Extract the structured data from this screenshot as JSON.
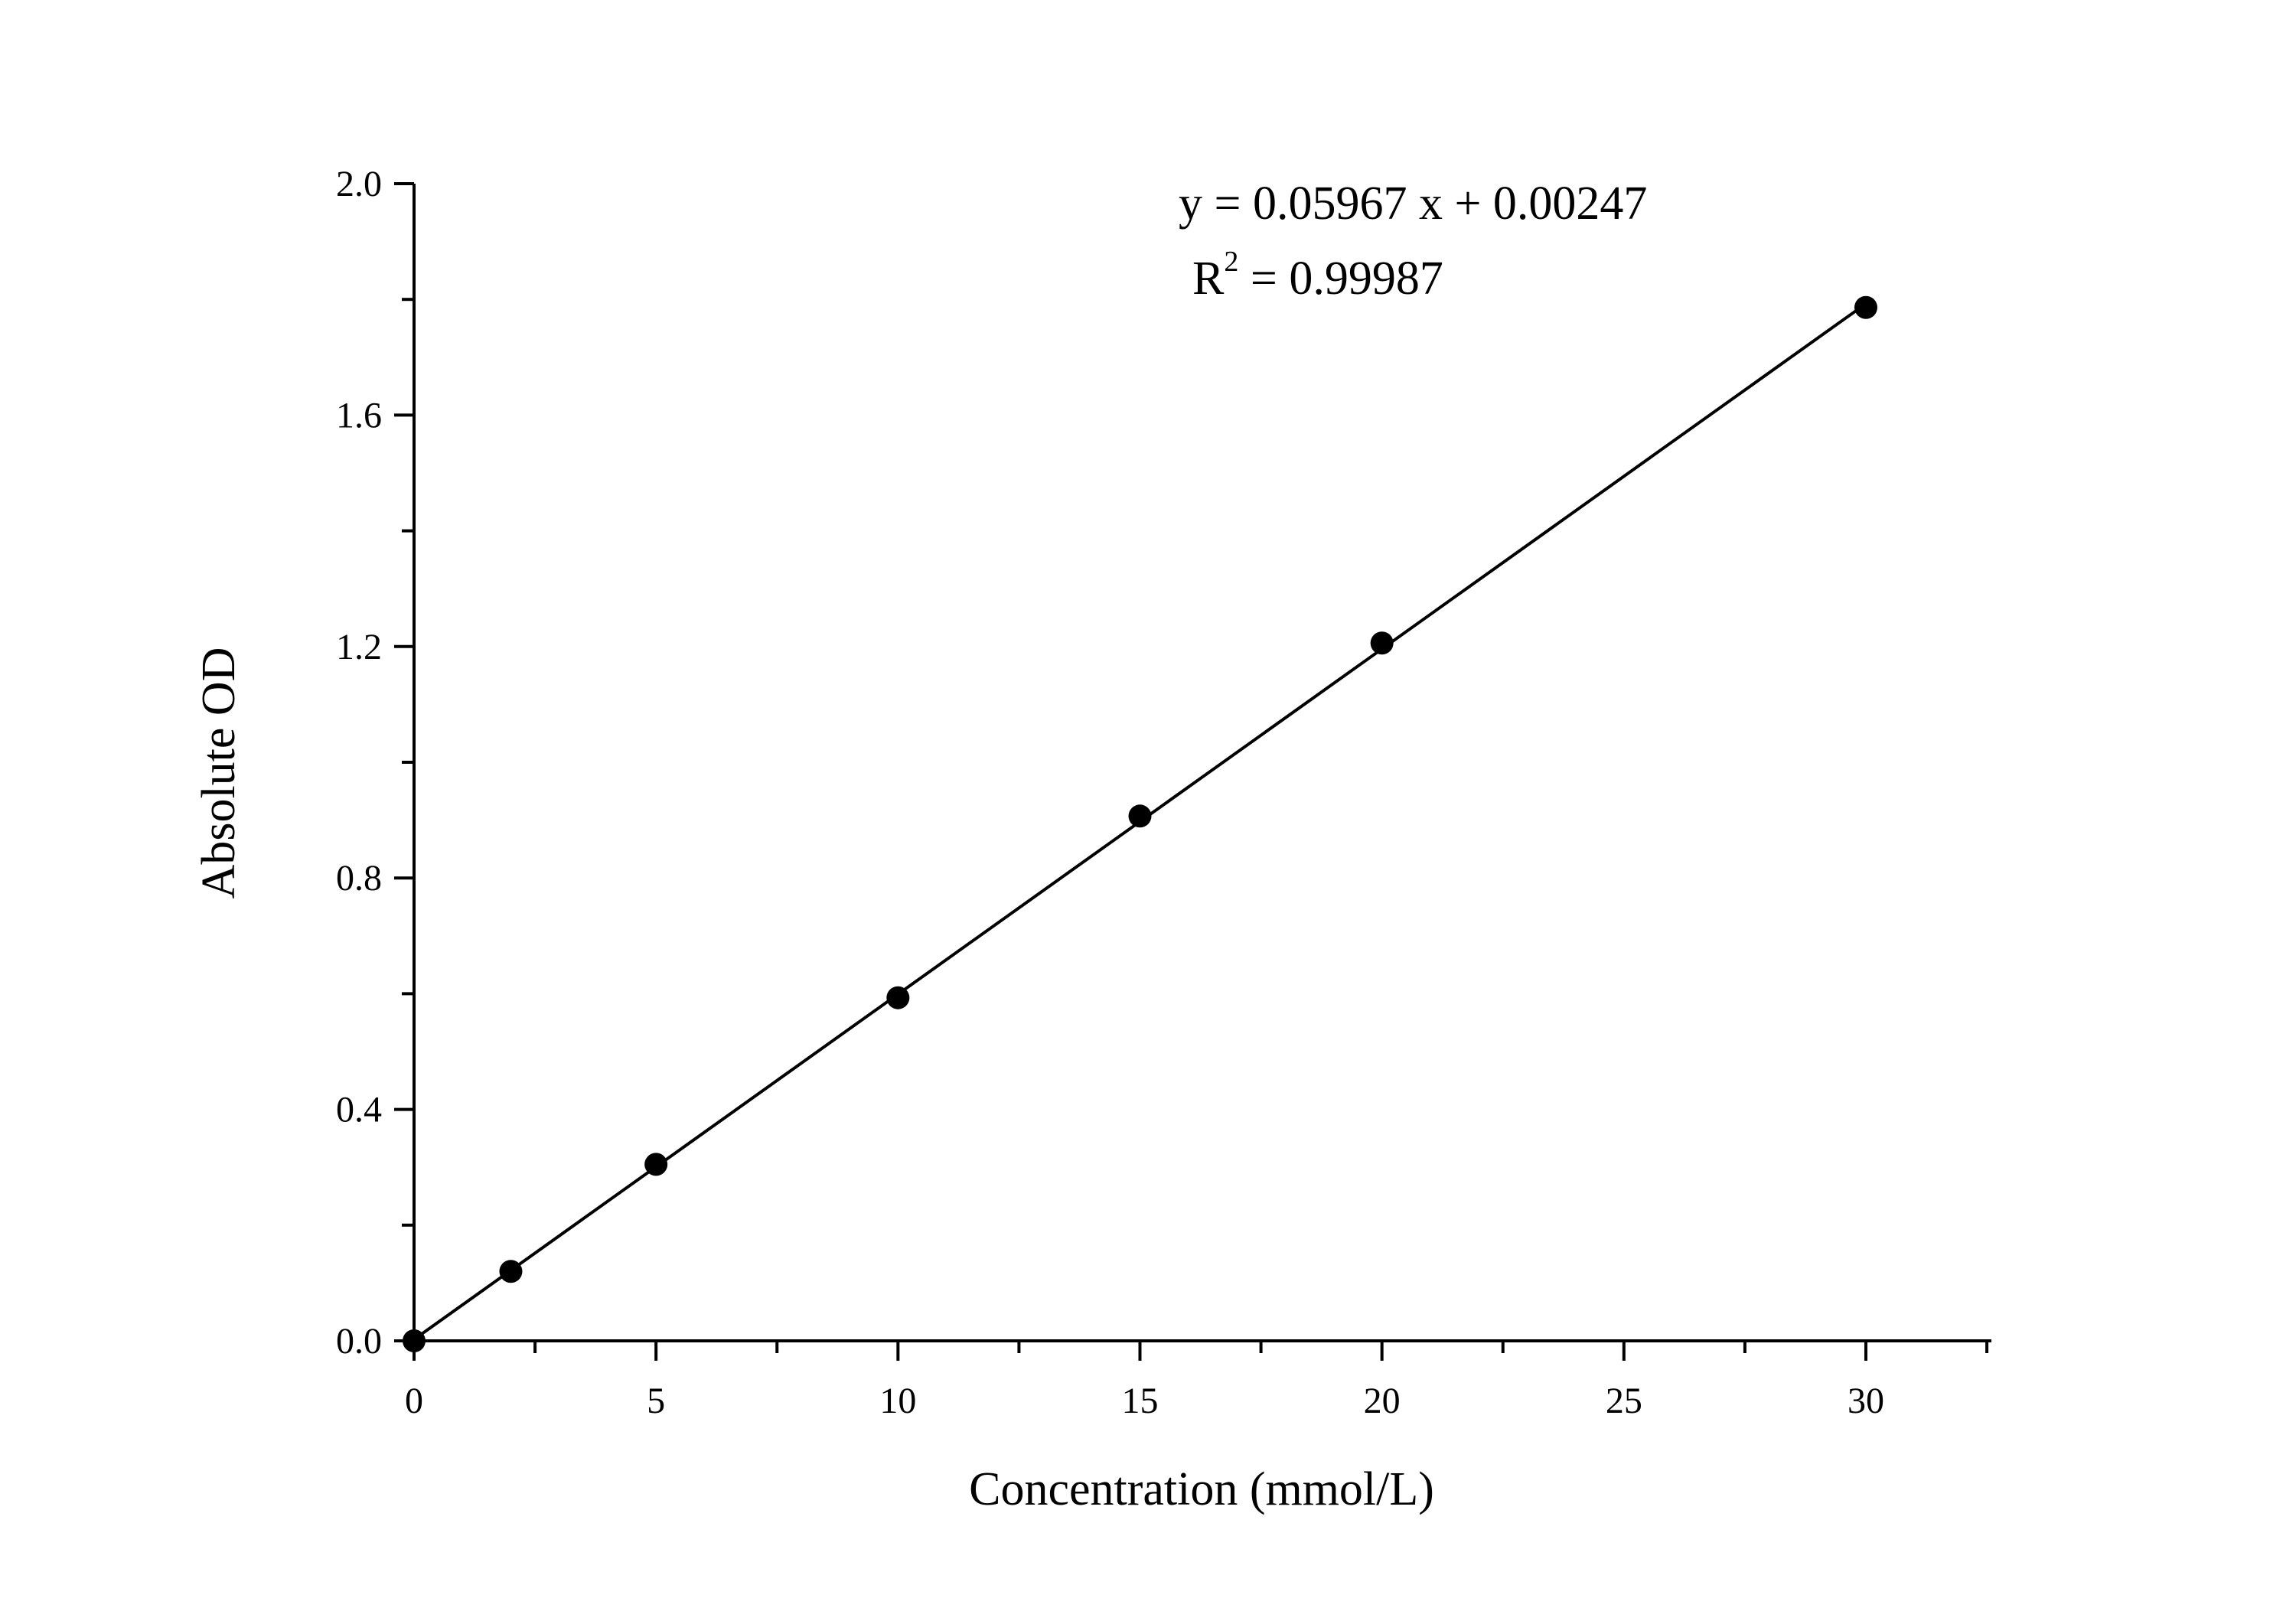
{
  "chart_data": {
    "type": "scatter",
    "title": "",
    "xlabel": "Concentration (mmol/L)",
    "ylabel": "Absolute OD",
    "xlim": [
      0,
      32.5
    ],
    "ylim": [
      0,
      2.0
    ],
    "x_ticks": [
      0,
      5,
      10,
      15,
      20,
      25,
      30
    ],
    "x_tick_labels": [
      "0",
      "5",
      "10",
      "15",
      "20",
      "25",
      "30"
    ],
    "x_minor_step": 2.5,
    "y_ticks": [
      0.0,
      0.4,
      0.8,
      1.2,
      1.6,
      2.0
    ],
    "y_tick_labels": [
      "0.0",
      "0.4",
      "0.8",
      "1.2",
      "1.6",
      "2.0"
    ],
    "y_minor_step": 0.2,
    "grid": false,
    "series": [
      {
        "x": [
          0,
          2,
          5,
          10,
          15,
          20,
          30
        ],
        "y": [
          0.0,
          0.12,
          0.305,
          0.593,
          0.907,
          1.206,
          1.786
        ]
      }
    ],
    "fit_line": {
      "slope": 0.05967,
      "intercept": 0.00247,
      "x_range": [
        0,
        30
      ]
    },
    "annotations": {
      "equation": "y = 0.05967 x + 0.00247",
      "r2_base": "R",
      "r2_sup": "2",
      "r2_value": " = 0.99987"
    },
    "colors": {
      "ink": "#000000",
      "background": "#ffffff"
    }
  }
}
